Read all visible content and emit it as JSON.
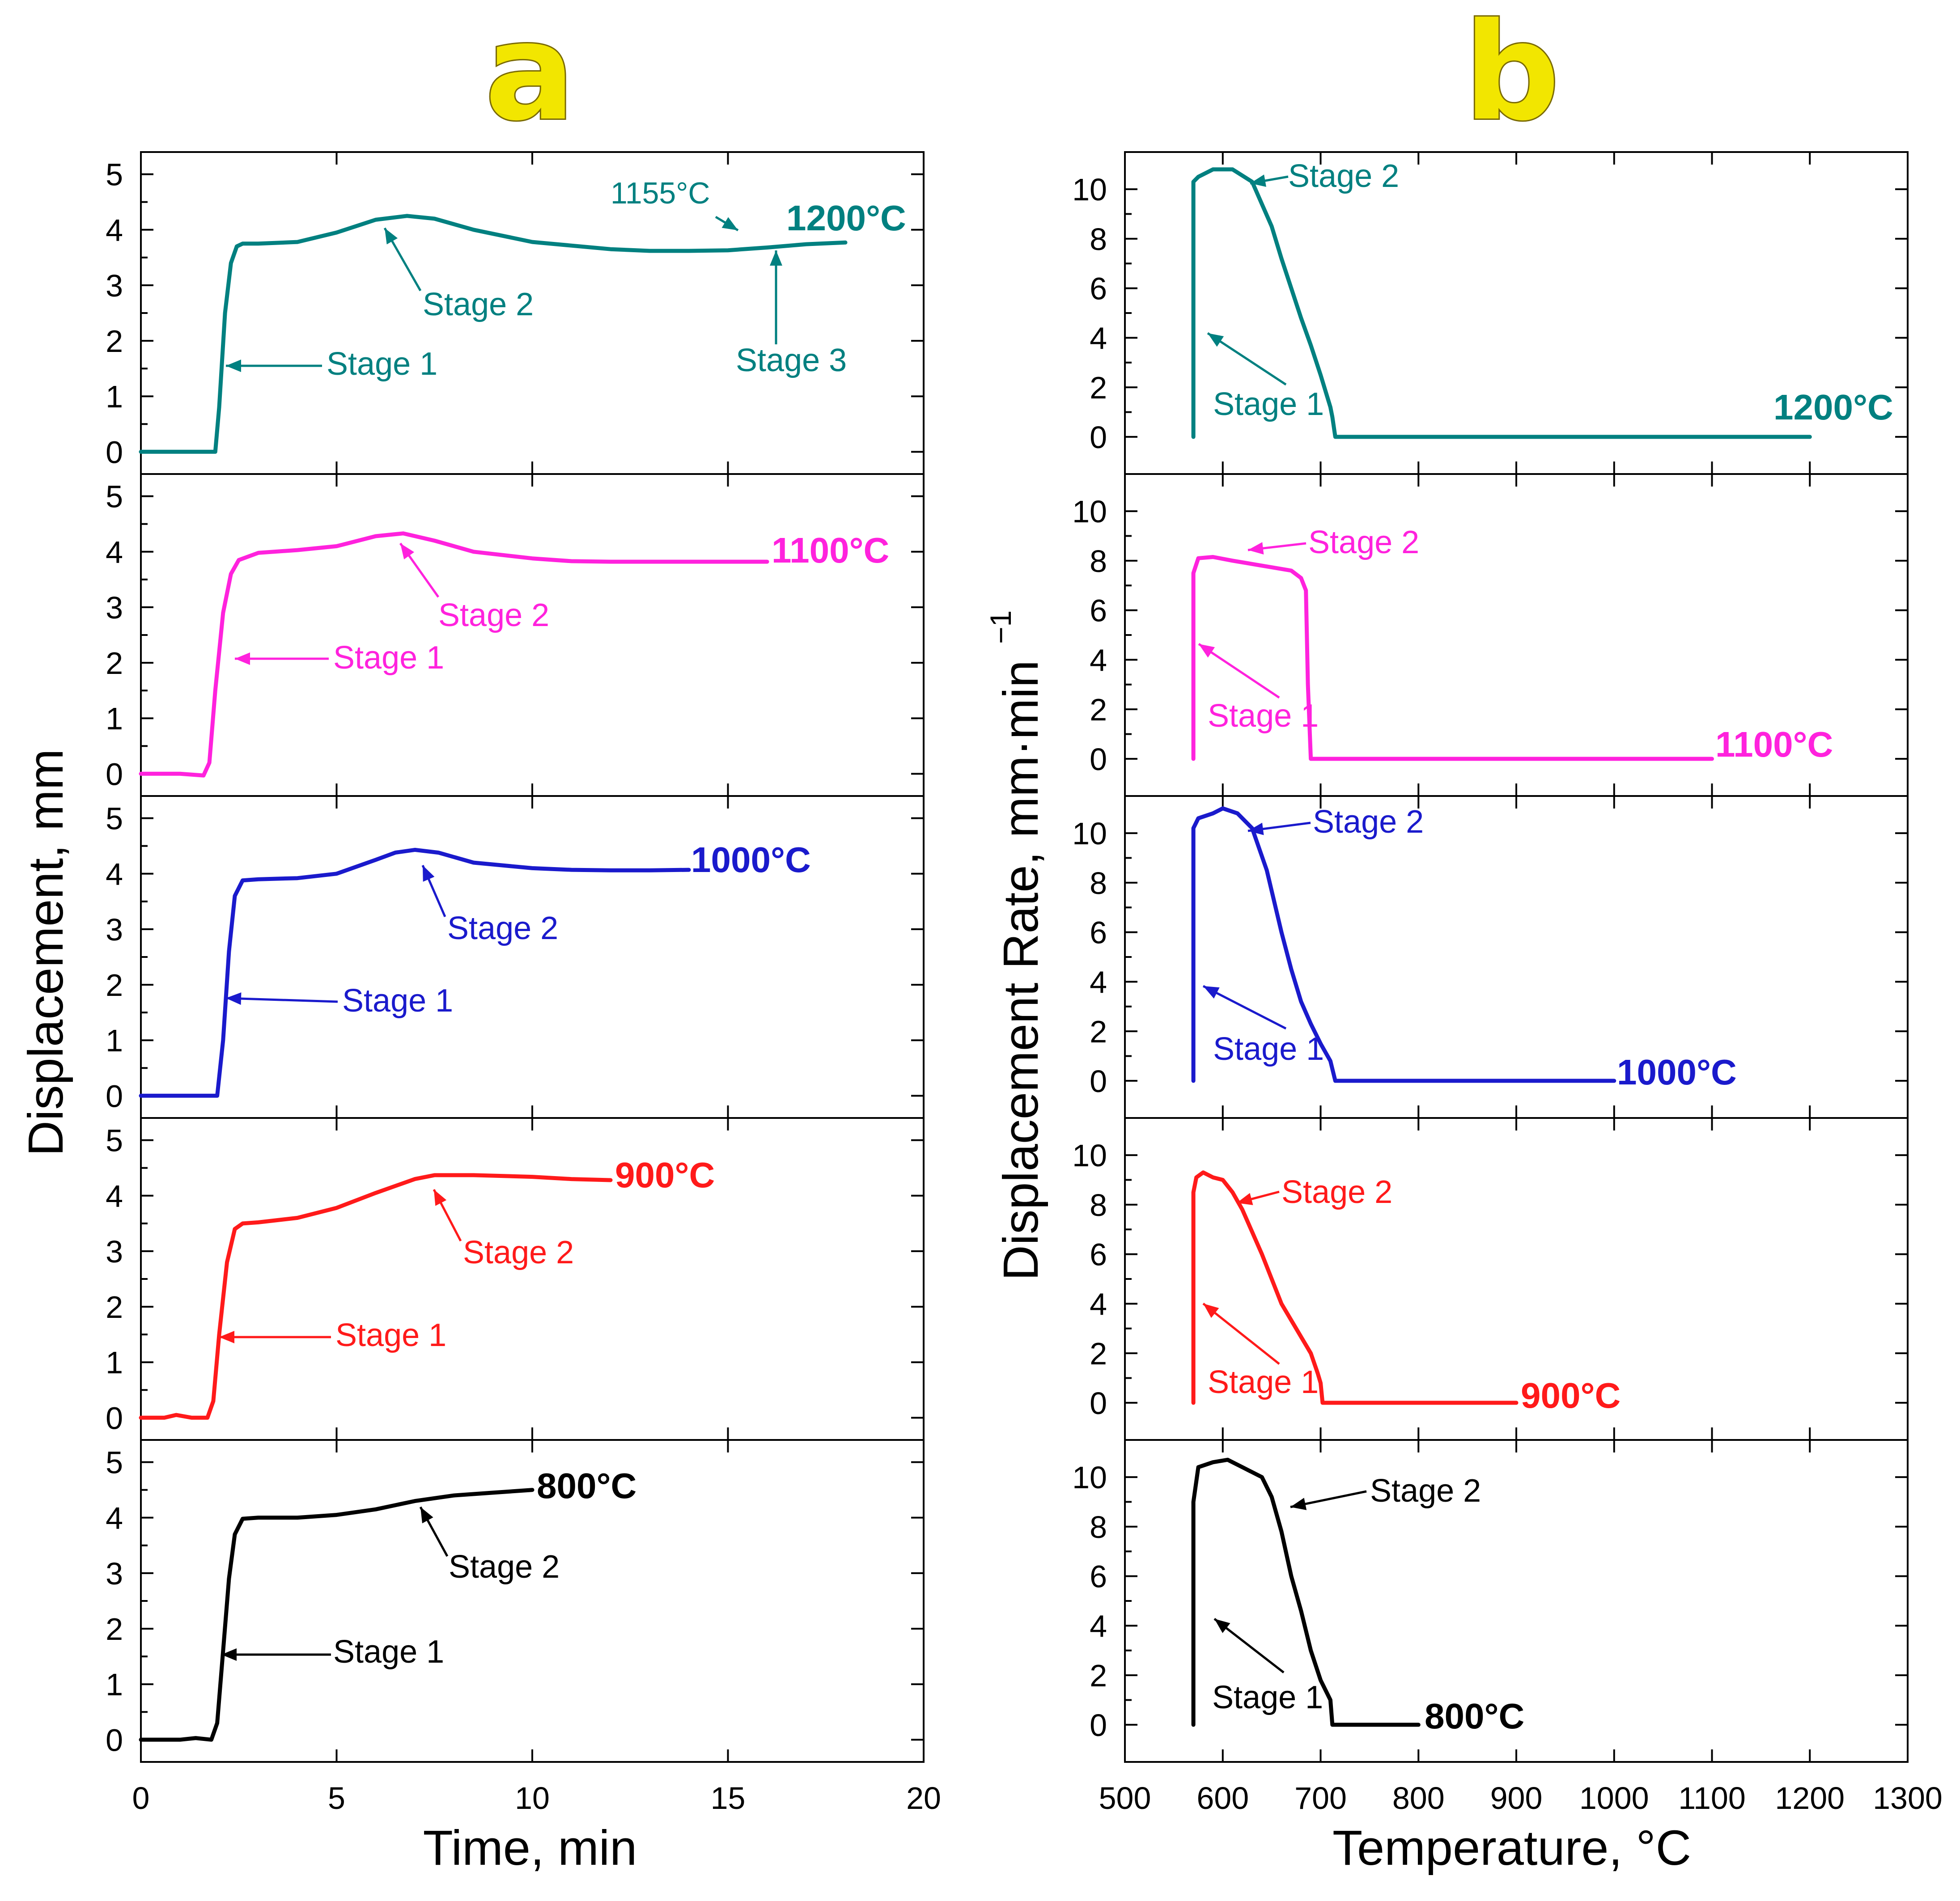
{
  "panels": {
    "a": "a",
    "b": "b"
  },
  "colors": {
    "1200": "#008080",
    "1100": "#ff22dd",
    "1000": "#1a1acc",
    "900": "#ff1a1a",
    "800": "#000000"
  },
  "axes": {
    "a_xlabel": "Time, min",
    "a_ylabel": "Displacement, mm",
    "b_xlabel": "Temperature, °C",
    "b_ylabel_main": "Displacement Rate, mm·min",
    "b_ylabel_sup": "−1"
  },
  "chart_data": [
    {
      "type": "line",
      "panel": "a",
      "xlabel": "Time, min",
      "ylabel": "Displacement, mm",
      "xlim": [
        0,
        20
      ],
      "xticks": [
        0,
        5,
        10,
        15,
        20
      ],
      "ylim": [
        -0.4,
        5.4
      ],
      "yticks": [
        0,
        1,
        2,
        3,
        4,
        5
      ],
      "series": [
        {
          "name": "1200°C",
          "color_key": "1200",
          "x": [
            0,
            1.9,
            2.0,
            2.15,
            2.3,
            2.45,
            2.6,
            3,
            4,
            5,
            6,
            6.8,
            7.5,
            8.5,
            10,
            12,
            13,
            14,
            15,
            16,
            17,
            18
          ],
          "y": [
            0,
            0,
            0.8,
            2.5,
            3.4,
            3.7,
            3.75,
            3.75,
            3.78,
            3.95,
            4.18,
            4.25,
            4.2,
            4.0,
            3.78,
            3.65,
            3.62,
            3.62,
            3.63,
            3.68,
            3.74,
            3.77
          ],
          "annotations": [
            "Stage 1",
            "Stage 2",
            "Stage 3",
            "1155°C"
          ]
        },
        {
          "name": "1100°C",
          "color_key": "1100",
          "x": [
            0,
            1.0,
            1.6,
            1.75,
            1.9,
            2.1,
            2.3,
            2.5,
            3,
            4,
            5,
            6,
            6.7,
            7.5,
            8.5,
            10,
            11,
            12,
            13,
            14,
            15,
            16
          ],
          "y": [
            0,
            0,
            -0.03,
            0.2,
            1.5,
            2.9,
            3.6,
            3.85,
            3.98,
            4.03,
            4.1,
            4.28,
            4.33,
            4.2,
            4.0,
            3.88,
            3.83,
            3.82,
            3.82,
            3.82,
            3.82,
            3.82
          ],
          "annotations": [
            "Stage 1",
            "Stage 2"
          ]
        },
        {
          "name": "1000°C",
          "color_key": "1000",
          "x": [
            0,
            1.5,
            1.95,
            2.1,
            2.25,
            2.4,
            2.6,
            3,
            4,
            5,
            6,
            6.5,
            7,
            7.6,
            8.5,
            10,
            11,
            12,
            13,
            14
          ],
          "y": [
            0,
            0,
            0,
            1.0,
            2.6,
            3.6,
            3.88,
            3.9,
            3.92,
            4.0,
            4.25,
            4.38,
            4.43,
            4.38,
            4.2,
            4.1,
            4.07,
            4.06,
            4.06,
            4.07
          ],
          "annotations": [
            "Stage 1",
            "Stage 2"
          ]
        },
        {
          "name": "900°C",
          "color_key": "900",
          "x": [
            0,
            0.6,
            0.9,
            1.3,
            1.7,
            1.85,
            2.0,
            2.2,
            2.4,
            2.6,
            3,
            4,
            5,
            6,
            7,
            7.5,
            8.5,
            10,
            11,
            12
          ],
          "y": [
            0,
            0,
            0.05,
            0,
            0,
            0.3,
            1.5,
            2.8,
            3.4,
            3.5,
            3.52,
            3.6,
            3.78,
            4.05,
            4.3,
            4.37,
            4.37,
            4.34,
            4.3,
            4.28
          ],
          "annotations": [
            "Stage 1",
            "Stage 2"
          ]
        },
        {
          "name": "800°C",
          "color_key": "800",
          "x": [
            0,
            1.0,
            1.4,
            1.8,
            1.95,
            2.1,
            2.25,
            2.4,
            2.6,
            3,
            4,
            5,
            6,
            7,
            8,
            9,
            10
          ],
          "y": [
            0,
            0,
            0.03,
            0,
            0.3,
            1.6,
            2.9,
            3.7,
            3.98,
            4.0,
            4.0,
            4.05,
            4.15,
            4.3,
            4.4,
            4.45,
            4.5
          ],
          "annotations": [
            "Stage 1",
            "Stage 2"
          ]
        }
      ]
    },
    {
      "type": "line",
      "panel": "b",
      "xlabel": "Temperature, °C",
      "ylabel": "Displacement Rate, mm·min−1",
      "xlim": [
        500,
        1300
      ],
      "xticks": [
        500,
        600,
        700,
        800,
        900,
        1000,
        1100,
        1200,
        1300
      ],
      "ylim": [
        -1.5,
        11.5
      ],
      "yticks": [
        0,
        2,
        4,
        6,
        8,
        10
      ],
      "series": [
        {
          "name": "1200°C",
          "color_key": "1200",
          "x": [
            570,
            570,
            575,
            590,
            610,
            630,
            650,
            660,
            670,
            680,
            690,
            700,
            710,
            712,
            715,
            800,
            1000,
            1200
          ],
          "y": [
            0,
            10.3,
            10.5,
            10.8,
            10.8,
            10.3,
            8.5,
            7.2,
            6.0,
            4.8,
            3.7,
            2.5,
            1.2,
            0.8,
            0,
            0,
            0,
            0
          ],
          "annotations": [
            "Stage 1",
            "Stage 2"
          ]
        },
        {
          "name": "1100°C",
          "color_key": "1100",
          "x": [
            570,
            570,
            575,
            590,
            610,
            640,
            670,
            680,
            685,
            687,
            690,
            800,
            1000,
            1100
          ],
          "y": [
            0,
            7.5,
            8.1,
            8.15,
            8.0,
            7.8,
            7.6,
            7.3,
            6.8,
            3.0,
            0,
            0,
            0,
            0
          ],
          "annotations": [
            "Stage 1",
            "Stage 2"
          ]
        },
        {
          "name": "1000°C",
          "color_key": "1000",
          "x": [
            570,
            570,
            575,
            590,
            600,
            615,
            630,
            645,
            660,
            670,
            680,
            690,
            700,
            710,
            715,
            800,
            900,
            1000
          ],
          "y": [
            0,
            10.2,
            10.6,
            10.8,
            11.0,
            10.8,
            10.2,
            8.5,
            6.0,
            4.5,
            3.2,
            2.3,
            1.5,
            0.8,
            0,
            0,
            0,
            0
          ],
          "annotations": [
            "Stage 1",
            "Stage 2"
          ]
        },
        {
          "name": "900°C",
          "color_key": "900",
          "x": [
            570,
            570,
            573,
            580,
            590,
            600,
            610,
            620,
            640,
            660,
            675,
            690,
            697,
            700,
            702,
            800,
            900
          ],
          "y": [
            0,
            8.5,
            9.1,
            9.3,
            9.1,
            9.0,
            8.5,
            7.8,
            6.0,
            4.0,
            3.0,
            2.0,
            1.2,
            0.8,
            0,
            0,
            0
          ],
          "annotations": [
            "Stage 1",
            "Stage 2"
          ]
        },
        {
          "name": "800°C",
          "color_key": "800",
          "x": [
            570,
            570,
            575,
            590,
            605,
            620,
            640,
            650,
            660,
            670,
            680,
            690,
            700,
            710,
            712,
            800
          ],
          "y": [
            0,
            9.0,
            10.4,
            10.6,
            10.7,
            10.4,
            10.0,
            9.2,
            7.8,
            6.0,
            4.6,
            3.0,
            1.8,
            1.0,
            0,
            0
          ],
          "annotations": [
            "Stage 1",
            "Stage 2"
          ]
        }
      ]
    }
  ],
  "labels": {
    "stage1": "Stage 1",
    "stage2": "Stage 2",
    "stage3": "Stage 3",
    "t1155": "1155°C",
    "t1200": "1200°C",
    "t1100": "1100°C",
    "t1000": "1000°C",
    "t900": "900°C",
    "t800": "800°C"
  }
}
